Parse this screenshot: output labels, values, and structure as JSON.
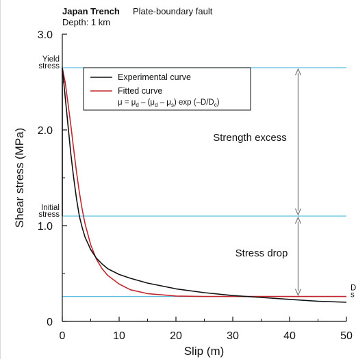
{
  "header": {
    "title": "Japan Trench",
    "subtitle": "Plate-boundary fault",
    "depth": "Depth: 1 km"
  },
  "chart_data": {
    "type": "line",
    "title": "Japan Trench",
    "subtitle": "Plate-boundary fault",
    "xlabel": "Slip (m)",
    "ylabel": "Shear stress (MPa)",
    "xlim": [
      0,
      50
    ],
    "ylim": [
      0,
      3.0
    ],
    "xticks": [
      0,
      10,
      20,
      30,
      40,
      50
    ],
    "yticks": [
      0,
      1.0,
      2.0,
      3.0
    ],
    "xtick_labels": [
      "0",
      "10",
      "20",
      "30",
      "40",
      "50"
    ],
    "ytick_labels": [
      "0",
      "1.0",
      "2.0",
      "3.0"
    ],
    "grid": false,
    "legend_position": "top-left",
    "series": [
      {
        "name": "Experimental curve",
        "color": "#111111",
        "x": [
          0,
          0.5,
          1,
          1.5,
          2,
          2.5,
          3,
          3.5,
          4,
          5,
          6,
          7,
          8,
          10,
          12,
          15,
          20,
          25,
          30,
          35,
          40,
          45,
          50
        ],
        "y": [
          2.65,
          2.35,
          2.05,
          1.75,
          1.5,
          1.28,
          1.1,
          0.98,
          0.88,
          0.75,
          0.66,
          0.6,
          0.55,
          0.49,
          0.45,
          0.4,
          0.34,
          0.3,
          0.27,
          0.25,
          0.23,
          0.21,
          0.2
        ]
      },
      {
        "name": "Fitted curve",
        "color": "#c0282d",
        "x": [
          0,
          0.5,
          1,
          1.5,
          2,
          2.5,
          3,
          3.5,
          4,
          5,
          6,
          7,
          8,
          10,
          12,
          15,
          20,
          25,
          30,
          35,
          40,
          45,
          50
        ],
        "y": [
          2.65,
          2.5,
          2.28,
          2.05,
          1.8,
          1.56,
          1.35,
          1.17,
          1.02,
          0.8,
          0.65,
          0.55,
          0.48,
          0.39,
          0.33,
          0.29,
          0.265,
          0.26,
          0.26,
          0.26,
          0.26,
          0.26,
          0.26
        ]
      }
    ],
    "reference_lines": [
      {
        "name": "Yield stress",
        "label_line1": "Yield",
        "label_line2": "stress",
        "y": 2.65,
        "color": "#5bbfe0"
      },
      {
        "name": "Initial stress",
        "label_line1": "Initial",
        "label_line2": "stress",
        "y": 1.1,
        "color": "#5bbfe0"
      },
      {
        "name": "Dynamic stress",
        "label_line1": "D",
        "label_line2": "s",
        "y": 0.26,
        "color": "#5bbfe0"
      }
    ],
    "annotations": [
      {
        "text": "Strength excess",
        "x_ref": 41.5,
        "y_from": 1.1,
        "y_to": 2.65
      },
      {
        "text": "Stress drop",
        "x_ref": 41.5,
        "y_from": 0.26,
        "y_to": 1.1
      }
    ],
    "legend": {
      "formula_parts": [
        "μ = μ",
        "d",
        " – (μ",
        "d",
        " – μ",
        "s",
        ") exp (–D/D",
        "c",
        ")"
      ]
    }
  }
}
